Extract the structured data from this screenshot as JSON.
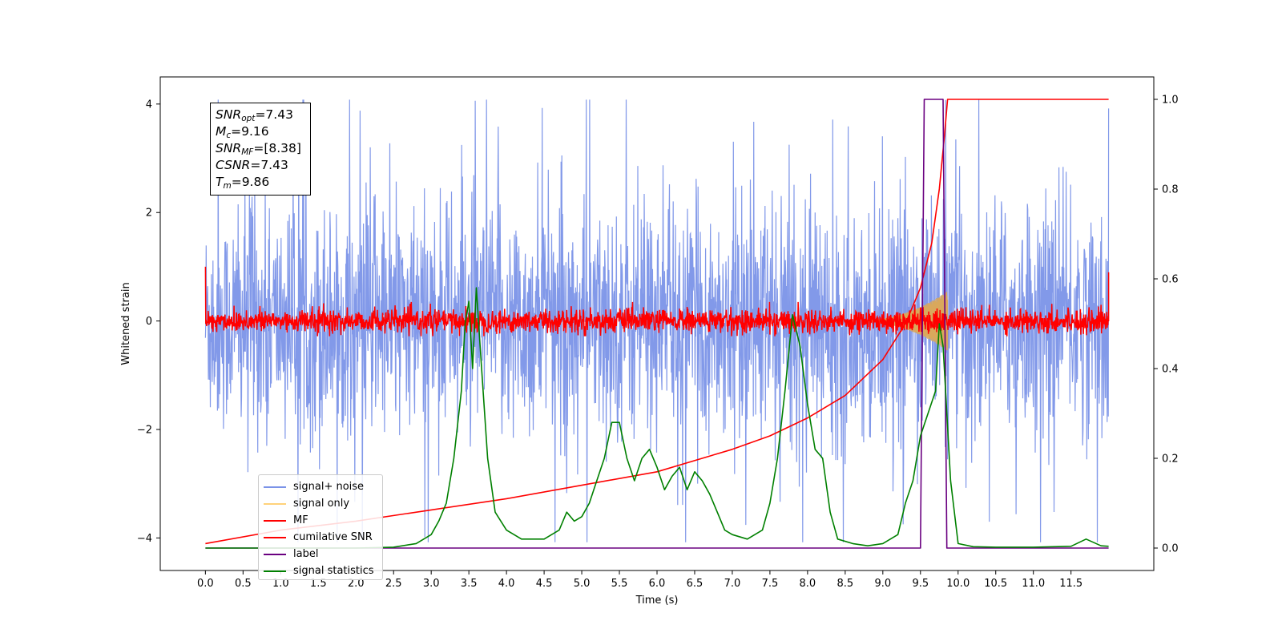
{
  "chart_data": {
    "type": "line",
    "xlabel": "Time (s)",
    "ylabel": "Whitened strain",
    "xlim": [
      -0.6,
      12.6
    ],
    "ylim": [
      -4.6,
      4.5
    ],
    "ylim_right": [
      -0.05,
      1.05
    ],
    "x_ticks": [
      "0.0",
      "0.5",
      "1.0",
      "1.5",
      "2.0",
      "2.5",
      "3.0",
      "3.5",
      "4.0",
      "4.5",
      "5.0",
      "5.5",
      "6.0",
      "6.5",
      "7.0",
      "7.5",
      "8.0",
      "8.5",
      "9.0",
      "9.5",
      "10.0",
      "10.5",
      "11.0",
      "11.5"
    ],
    "y_ticks_left": [
      "4",
      "2",
      "0",
      "−2",
      "−4"
    ],
    "y_ticks_right": [
      "1.0",
      "0.8",
      "0.6",
      "0.4",
      "0.2",
      "0.0"
    ],
    "annotation": {
      "snr_opt_symbol": "SNR",
      "snr_opt_sub": "opt",
      "snr_opt_value": "=7.43",
      "mc_symbol": "M",
      "mc_sub": "c",
      "mc_value": "=9.16",
      "snr_mf_symbol": "SNR",
      "snr_mf_sub": "MF",
      "snr_mf_value": "=[8.38]",
      "csnr_symbol": "CSNR",
      "csnr_value": "=7.43",
      "tm_symbol": "T",
      "tm_sub": "m",
      "tm_value": "=9.86"
    },
    "legend": {
      "placement": "lower-left",
      "entries": [
        {
          "label": "signal+ noise",
          "color": "#7b93e8"
        },
        {
          "label": "signal only",
          "color": "#ffd27a"
        },
        {
          "label": "MF",
          "color": "#ff0000"
        },
        {
          "label": "cumilative SNR",
          "color": "#ff0000"
        },
        {
          "label": "label",
          "color": "#6a0080"
        },
        {
          "label": "signal statistics",
          "color": "#008000"
        }
      ]
    },
    "series": [
      {
        "name": "signal+ noise",
        "axis": "left",
        "color": "#7b93e8",
        "approx_amplitude": 2.4,
        "x_range": [
          0.0,
          12.0
        ]
      },
      {
        "name": "signal only",
        "axis": "left",
        "color": "#d9a85c",
        "peak_time": 9.86,
        "peak_amplitude": 0.55
      },
      {
        "name": "MF",
        "axis": "left",
        "color": "#ff0000",
        "approx_amplitude": 0.2,
        "edge_value": 1.0
      },
      {
        "name": "cumilative SNR",
        "axis": "right",
        "color": "#ff0000",
        "x": [
          0.0,
          1.0,
          2.0,
          3.0,
          4.0,
          5.0,
          6.0,
          7.0,
          7.5,
          8.0,
          8.5,
          9.0,
          9.3,
          9.5,
          9.65,
          9.75,
          9.82,
          9.86,
          12.0
        ],
        "y": [
          0.01,
          0.04,
          0.06,
          0.085,
          0.11,
          0.14,
          0.17,
          0.22,
          0.25,
          0.29,
          0.34,
          0.42,
          0.5,
          0.58,
          0.68,
          0.8,
          0.92,
          1.0,
          1.0
        ]
      },
      {
        "name": "label",
        "axis": "right",
        "color": "#6a0080",
        "x": [
          0.0,
          9.5,
          9.55,
          9.8,
          9.85,
          12.0
        ],
        "y": [
          0.0,
          0.0,
          1.0,
          1.0,
          0.0,
          0.0
        ]
      },
      {
        "name": "signal statistics",
        "axis": "right",
        "color": "#008000",
        "x": [
          0.0,
          0.5,
          1.0,
          1.5,
          2.0,
          2.5,
          2.8,
          3.0,
          3.1,
          3.2,
          3.3,
          3.4,
          3.45,
          3.5,
          3.55,
          3.6,
          3.65,
          3.75,
          3.85,
          4.0,
          4.2,
          4.5,
          4.7,
          4.8,
          4.9,
          5.0,
          5.1,
          5.2,
          5.3,
          5.4,
          5.5,
          5.6,
          5.7,
          5.8,
          5.9,
          6.0,
          6.1,
          6.2,
          6.3,
          6.4,
          6.5,
          6.6,
          6.7,
          6.8,
          6.9,
          7.0,
          7.2,
          7.4,
          7.5,
          7.6,
          7.7,
          7.8,
          7.9,
          8.0,
          8.1,
          8.2,
          8.3,
          8.4,
          8.6,
          8.8,
          9.0,
          9.2,
          9.3,
          9.4,
          9.5,
          9.6,
          9.7,
          9.75,
          9.8,
          9.85,
          9.9,
          10.0,
          10.2,
          10.5,
          11.0,
          11.5,
          11.7,
          11.9,
          12.0
        ],
        "y": [
          0.0,
          0.0,
          0.0,
          0.0,
          0.0,
          0.002,
          0.01,
          0.03,
          0.06,
          0.1,
          0.2,
          0.35,
          0.5,
          0.55,
          0.4,
          0.58,
          0.45,
          0.2,
          0.08,
          0.04,
          0.02,
          0.02,
          0.04,
          0.08,
          0.06,
          0.07,
          0.1,
          0.15,
          0.2,
          0.28,
          0.28,
          0.2,
          0.15,
          0.2,
          0.22,
          0.18,
          0.13,
          0.16,
          0.18,
          0.13,
          0.17,
          0.15,
          0.12,
          0.08,
          0.04,
          0.03,
          0.02,
          0.04,
          0.1,
          0.2,
          0.35,
          0.52,
          0.45,
          0.32,
          0.22,
          0.2,
          0.08,
          0.02,
          0.01,
          0.005,
          0.01,
          0.03,
          0.1,
          0.15,
          0.25,
          0.3,
          0.35,
          0.5,
          0.45,
          0.3,
          0.15,
          0.01,
          0.003,
          0.002,
          0.002,
          0.004,
          0.02,
          0.005,
          0.004
        ]
      }
    ]
  }
}
